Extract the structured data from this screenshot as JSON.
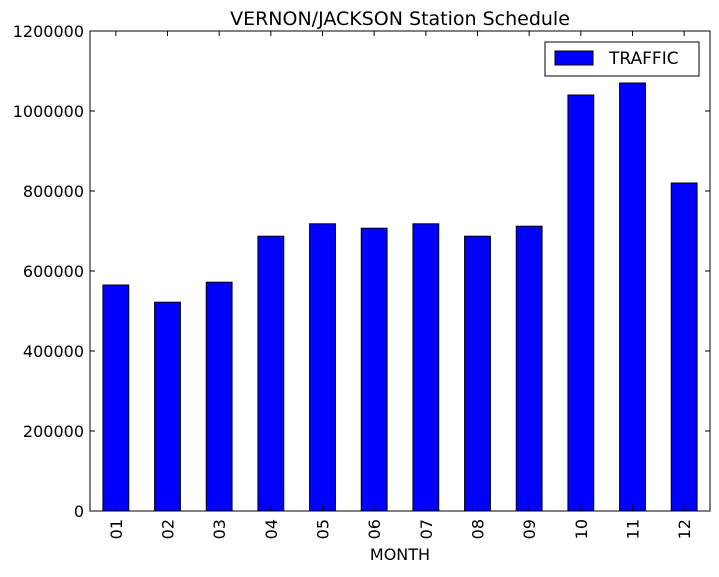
{
  "chart_data": {
    "type": "bar",
    "title": "VERNON/JACKSON Station Schedule",
    "xlabel": "MONTH",
    "ylabel": "",
    "categories": [
      "01",
      "02",
      "03",
      "04",
      "05",
      "06",
      "07",
      "08",
      "09",
      "10",
      "11",
      "12"
    ],
    "series": [
      {
        "name": "TRAFFIC",
        "color": "#0000ff",
        "values": [
          565000,
          522000,
          572000,
          687000,
          718000,
          707000,
          718000,
          687000,
          712000,
          1040000,
          1070000,
          820000
        ]
      }
    ],
    "ylim": [
      0,
      1200000
    ],
    "yticks": [
      "0",
      "200000",
      "400000",
      "600000",
      "800000",
      "1000000",
      "1200000"
    ],
    "grid": false,
    "legend": "top-right"
  }
}
